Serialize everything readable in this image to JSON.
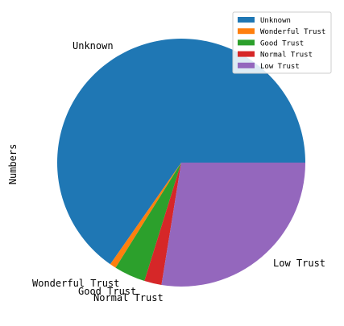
{
  "chart_data": {
    "type": "pie",
    "ylabel": "Numbers",
    "slices": [
      {
        "label": "Unknown",
        "value": 64.0,
        "color": "#1f77b4"
      },
      {
        "label": "Wonderful Trust",
        "value": 0.8,
        "color": "#ff7f0e"
      },
      {
        "label": "Good Trust",
        "value": 4.0,
        "color": "#2ca02c"
      },
      {
        "label": "Normal Trust",
        "value": 2.2,
        "color": "#d62728"
      },
      {
        "label": "Low Trust",
        "value": 27.0,
        "color": "#9467bd"
      }
    ],
    "start_angle_deg": 0,
    "direction": "counterclockwise",
    "legend": {
      "position": "top-right",
      "entries": [
        "Unknown",
        "Wonderful Trust",
        "Good Trust",
        "Normal Trust",
        "Low Trust"
      ]
    }
  }
}
